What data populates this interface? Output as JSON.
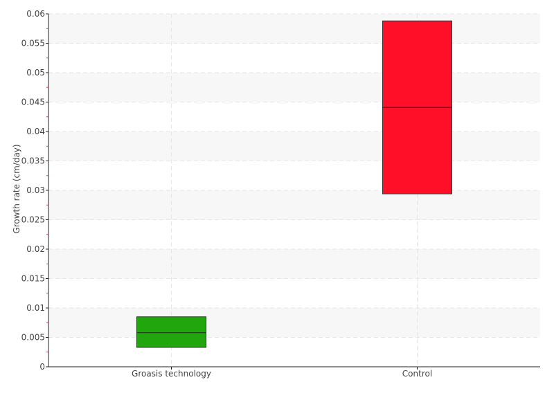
{
  "chart_data": {
    "type": "box",
    "title": "",
    "xlabel": "",
    "ylabel": "Growth rate (cm/day)",
    "ylim": [
      0,
      0.06
    ],
    "yticks": [
      "0",
      "0.005",
      "0.01",
      "0.015",
      "0.02",
      "0.025",
      "0.03",
      "0.035",
      "0.04",
      "0.045",
      "0.05",
      "0.055",
      "0.06"
    ],
    "grid": true,
    "categories": [
      "Groasis technology",
      "Control"
    ],
    "boxes": [
      {
        "category": "Groasis technology",
        "q1": 0.0033,
        "median": 0.0058,
        "q3": 0.0085,
        "color": "#22a60e"
      },
      {
        "category": "Control",
        "q1": 0.0294,
        "median": 0.0441,
        "q3": 0.0588,
        "color": "#ff1028"
      }
    ]
  }
}
